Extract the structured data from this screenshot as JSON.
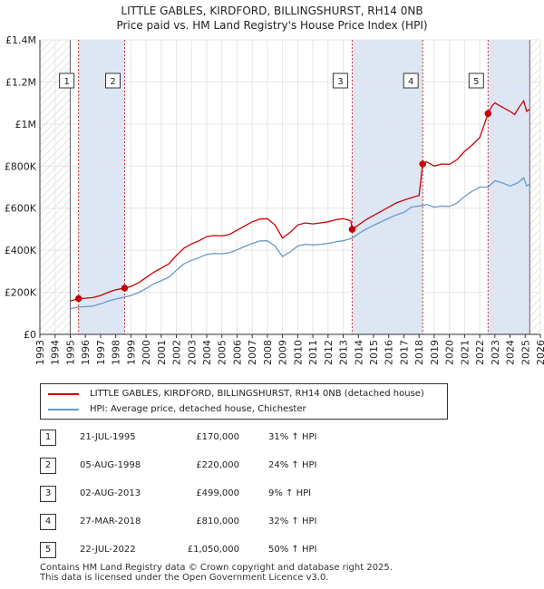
{
  "chart_data": {
    "type": "line",
    "title": "LITTLE GABLES, KIRDFORD, BILLINGSHURST, RH14 0NB",
    "subtitle": "Price paid vs. HM Land Registry's House Price Index (HPI)",
    "xlim": [
      1993,
      2026
    ],
    "ylim": [
      0,
      1400000
    ],
    "x_ticks": [
      1993,
      1994,
      1995,
      1996,
      1997,
      1998,
      1999,
      2000,
      2001,
      2002,
      2003,
      2004,
      2005,
      2006,
      2007,
      2008,
      2009,
      2010,
      2011,
      2012,
      2013,
      2014,
      2015,
      2016,
      2017,
      2018,
      2019,
      2020,
      2021,
      2022,
      2023,
      2024,
      2025,
      2026
    ],
    "y_ticks": [
      {
        "value": 0,
        "label": "£0"
      },
      {
        "value": 200000,
        "label": "£200K"
      },
      {
        "value": 400000,
        "label": "£400K"
      },
      {
        "value": 600000,
        "label": "£600K"
      },
      {
        "value": 800000,
        "label": "£800K"
      },
      {
        "value": 1000000,
        "label": "£1M"
      },
      {
        "value": 1200000,
        "label": "£1.2M"
      },
      {
        "value": 1400000,
        "label": "£1.4M"
      }
    ],
    "shaded_ranges": [
      [
        1995.55,
        1998.59
      ],
      [
        2013.59,
        2018.24
      ],
      [
        2022.55,
        2025.3
      ]
    ],
    "hatched_ranges": [
      [
        1993,
        1995.0
      ],
      [
        2025.3,
        2026
      ]
    ],
    "series": [
      {
        "name": "LITTLE GABLES, KIRDFORD, BILLINGSHURST, RH14 0NB (detached house)",
        "color": "#cc0000",
        "points": [
          [
            1995.0,
            158000
          ],
          [
            1995.55,
            170000
          ],
          [
            1996.0,
            172000
          ],
          [
            1996.5,
            175000
          ],
          [
            1997.0,
            185000
          ],
          [
            1997.5,
            200000
          ],
          [
            1998.0,
            212000
          ],
          [
            1998.59,
            220000
          ],
          [
            1999.0,
            228000
          ],
          [
            1999.5,
            245000
          ],
          [
            2000.0,
            270000
          ],
          [
            2000.5,
            295000
          ],
          [
            2001.0,
            315000
          ],
          [
            2001.5,
            335000
          ],
          [
            2002.0,
            375000
          ],
          [
            2002.5,
            410000
          ],
          [
            2003.0,
            430000
          ],
          [
            2003.5,
            445000
          ],
          [
            2004.0,
            465000
          ],
          [
            2004.5,
            470000
          ],
          [
            2005.0,
            468000
          ],
          [
            2005.5,
            475000
          ],
          [
            2006.0,
            495000
          ],
          [
            2006.5,
            515000
          ],
          [
            2007.0,
            535000
          ],
          [
            2007.5,
            548000
          ],
          [
            2008.0,
            550000
          ],
          [
            2008.5,
            520000
          ],
          [
            2009.0,
            458000
          ],
          [
            2009.5,
            485000
          ],
          [
            2010.0,
            520000
          ],
          [
            2010.5,
            530000
          ],
          [
            2011.0,
            525000
          ],
          [
            2011.5,
            530000
          ],
          [
            2012.0,
            535000
          ],
          [
            2012.5,
            545000
          ],
          [
            2013.0,
            550000
          ],
          [
            2013.5,
            540000
          ],
          [
            2013.59,
            499000
          ],
          [
            2014.0,
            520000
          ],
          [
            2014.5,
            545000
          ],
          [
            2015.0,
            565000
          ],
          [
            2015.5,
            585000
          ],
          [
            2016.0,
            605000
          ],
          [
            2016.5,
            625000
          ],
          [
            2017.0,
            638000
          ],
          [
            2017.5,
            650000
          ],
          [
            2018.0,
            660000
          ],
          [
            2018.24,
            810000
          ],
          [
            2018.5,
            820000
          ],
          [
            2019.0,
            800000
          ],
          [
            2019.5,
            810000
          ],
          [
            2020.0,
            808000
          ],
          [
            2020.5,
            830000
          ],
          [
            2021.0,
            870000
          ],
          [
            2021.5,
            900000
          ],
          [
            2022.0,
            935000
          ],
          [
            2022.55,
            1050000
          ],
          [
            2022.8,
            1085000
          ],
          [
            2023.0,
            1100000
          ],
          [
            2023.5,
            1080000
          ],
          [
            2024.0,
            1060000
          ],
          [
            2024.3,
            1045000
          ],
          [
            2024.6,
            1080000
          ],
          [
            2024.9,
            1110000
          ],
          [
            2025.1,
            1060000
          ],
          [
            2025.3,
            1070000
          ]
        ]
      },
      {
        "name": "HPI: Average price, detached house, Chichester",
        "color": "#6699cc",
        "points": [
          [
            1995.0,
            122000
          ],
          [
            1995.55,
            130000
          ],
          [
            1996.0,
            132000
          ],
          [
            1996.5,
            135000
          ],
          [
            1997.0,
            145000
          ],
          [
            1997.5,
            158000
          ],
          [
            1998.0,
            168000
          ],
          [
            1998.59,
            177000
          ],
          [
            1999.0,
            185000
          ],
          [
            1999.5,
            198000
          ],
          [
            2000.0,
            218000
          ],
          [
            2000.5,
            240000
          ],
          [
            2001.0,
            255000
          ],
          [
            2001.5,
            272000
          ],
          [
            2002.0,
            305000
          ],
          [
            2002.5,
            335000
          ],
          [
            2003.0,
            352000
          ],
          [
            2003.5,
            365000
          ],
          [
            2004.0,
            380000
          ],
          [
            2004.5,
            385000
          ],
          [
            2005.0,
            383000
          ],
          [
            2005.5,
            388000
          ],
          [
            2006.0,
            402000
          ],
          [
            2006.5,
            418000
          ],
          [
            2007.0,
            432000
          ],
          [
            2007.5,
            444000
          ],
          [
            2008.0,
            445000
          ],
          [
            2008.5,
            420000
          ],
          [
            2009.0,
            370000
          ],
          [
            2009.5,
            392000
          ],
          [
            2010.0,
            420000
          ],
          [
            2010.5,
            428000
          ],
          [
            2011.0,
            425000
          ],
          [
            2011.5,
            428000
          ],
          [
            2012.0,
            432000
          ],
          [
            2012.5,
            440000
          ],
          [
            2013.0,
            445000
          ],
          [
            2013.59,
            457000
          ],
          [
            2014.0,
            478000
          ],
          [
            2014.5,
            500000
          ],
          [
            2015.0,
            518000
          ],
          [
            2015.5,
            535000
          ],
          [
            2016.0,
            552000
          ],
          [
            2016.5,
            568000
          ],
          [
            2017.0,
            580000
          ],
          [
            2017.5,
            605000
          ],
          [
            2018.24,
            613000
          ],
          [
            2018.5,
            618000
          ],
          [
            2019.0,
            605000
          ],
          [
            2019.5,
            610000
          ],
          [
            2020.0,
            608000
          ],
          [
            2020.5,
            625000
          ],
          [
            2021.0,
            655000
          ],
          [
            2021.5,
            680000
          ],
          [
            2022.0,
            700000
          ],
          [
            2022.55,
            700000
          ],
          [
            2023.0,
            730000
          ],
          [
            2023.5,
            720000
          ],
          [
            2024.0,
            705000
          ],
          [
            2024.5,
            720000
          ],
          [
            2024.9,
            745000
          ],
          [
            2025.1,
            705000
          ],
          [
            2025.3,
            715000
          ]
        ]
      }
    ],
    "sales": [
      {
        "num": "1",
        "year": 1995.55,
        "price": 170000,
        "date": "21-JUL-1995",
        "price_label": "£170,000",
        "hpi": "31% ↑ HPI"
      },
      {
        "num": "2",
        "year": 1998.59,
        "price": 220000,
        "date": "05-AUG-1998",
        "price_label": "£220,000",
        "hpi": "24% ↑ HPI"
      },
      {
        "num": "3",
        "year": 2013.59,
        "price": 499000,
        "date": "02-AUG-2013",
        "price_label": "£499,000",
        "hpi": "9% ↑ HPI"
      },
      {
        "num": "4",
        "year": 2018.24,
        "price": 810000,
        "date": "27-MAR-2018",
        "price_label": "£810,000",
        "hpi": "32% ↑ HPI"
      },
      {
        "num": "5",
        "year": 2022.55,
        "price": 1050000,
        "date": "22-JUL-2022",
        "price_label": "£1,050,000",
        "hpi": "50% ↑ HPI"
      }
    ]
  },
  "legend": {
    "property_label": "LITTLE GABLES, KIRDFORD, BILLINGSHURST, RH14 0NB (detached house)",
    "hpi_label": "HPI: Average price, detached house, Chichester",
    "property_color": "#cc0000",
    "hpi_color": "#6699cc"
  },
  "footer": {
    "line1": "Contains HM Land Registry data © Crown copyright and database right 2025.",
    "line2": "This data is licensed under the Open Government Licence v3.0."
  }
}
